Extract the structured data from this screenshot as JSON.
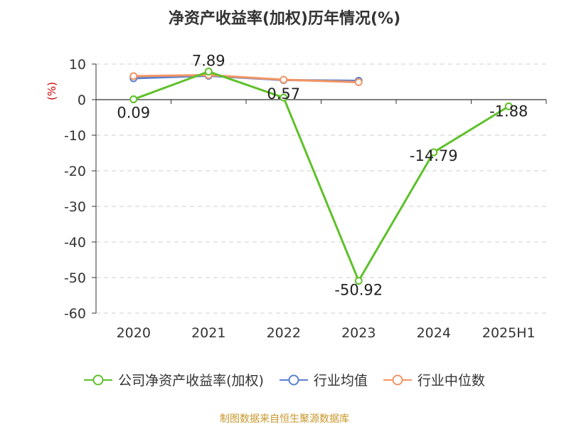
{
  "colors": {
    "company": "#5ec12a",
    "industry_avg": "#5b7fcf",
    "industry_median": "#f29563",
    "grid": "#cccccc",
    "axis": "#333333",
    "unit": "#cc0000"
  },
  "chart_data": {
    "type": "line",
    "title": "净资产收益率(加权)历年情况(%)",
    "ylabel": "(%)",
    "categories": [
      "2020",
      "2021",
      "2022",
      "2023",
      "2024",
      "2025H1"
    ],
    "ylim": [
      -60,
      10
    ],
    "yticks": [
      10,
      0,
      -10,
      -20,
      -30,
      -40,
      -50,
      -60
    ],
    "grid": "horizontal-dashed",
    "legend_position": "bottom",
    "series": [
      {
        "name": "公司净资产收益率(加权)",
        "values": [
          0.09,
          7.89,
          0.57,
          -50.92,
          -14.79,
          -1.88
        ],
        "labels": [
          "0.09",
          "7.89",
          "0.57",
          "-50.92",
          "-14.79",
          "-1.88"
        ]
      },
      {
        "name": "行业均值",
        "values": [
          6.0,
          6.7,
          5.5,
          5.3,
          null,
          null
        ]
      },
      {
        "name": "行业中位数",
        "values": [
          6.6,
          6.9,
          5.6,
          4.9,
          null,
          null
        ]
      }
    ]
  },
  "footer": {
    "source": "制图数据来自恒生聚源数据库"
  }
}
